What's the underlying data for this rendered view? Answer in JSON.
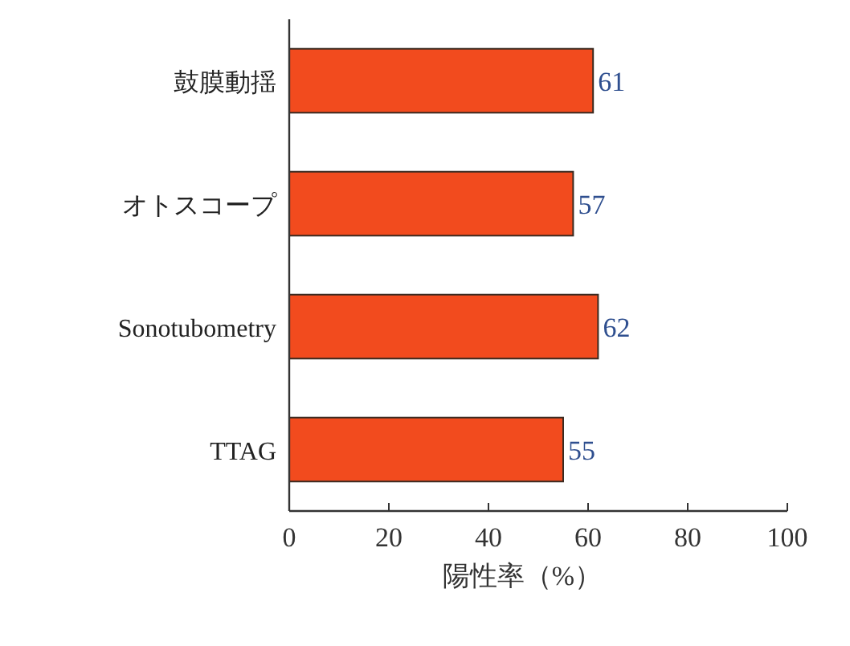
{
  "chart_data": {
    "type": "bar",
    "orientation": "horizontal",
    "categories": [
      "鼓膜動揺",
      "オトスコープ",
      "Sonotubometry",
      "TTAG"
    ],
    "values": [
      61,
      57,
      62,
      55
    ],
    "color": "#f24b1e",
    "xlabel": "陽性率（%）",
    "xlim": [
      0,
      100
    ],
    "xticks": [
      0,
      20,
      40,
      60,
      80,
      100
    ],
    "data_labels": true
  }
}
